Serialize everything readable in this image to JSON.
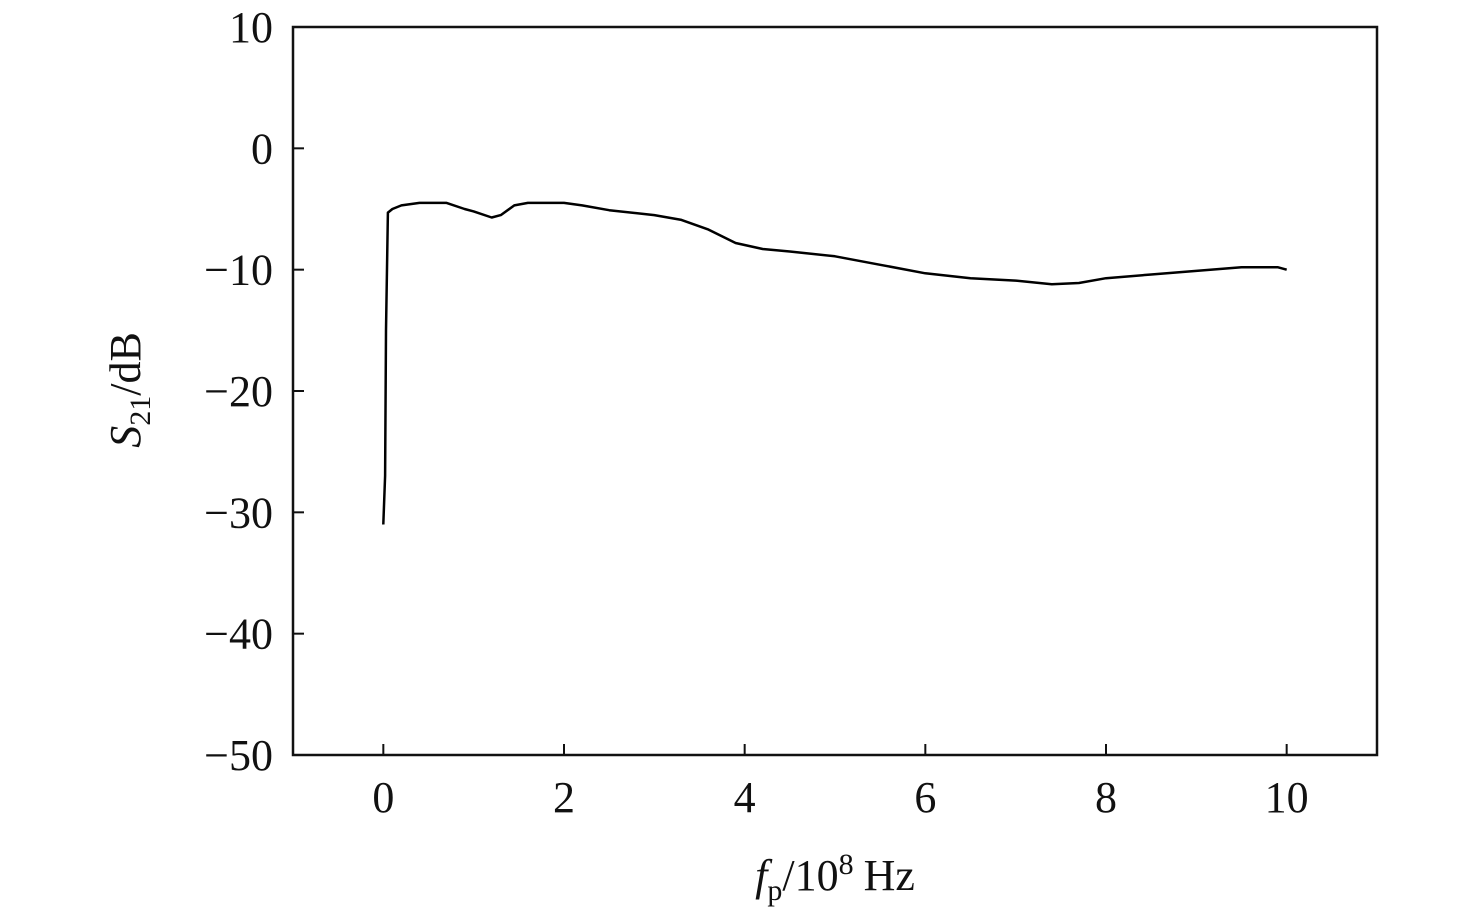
{
  "chart_data": {
    "type": "line",
    "ylabel": [
      "S",
      "21",
      "/dB"
    ],
    "xlabel": [
      "f",
      "p",
      "/10",
      "8",
      "Hz"
    ],
    "x": [
      0,
      0.02,
      0.03,
      0.05,
      0.1,
      0.2,
      0.4,
      0.7,
      0.9,
      1.0,
      1.2,
      1.3,
      1.45,
      1.6,
      2.0,
      2.2,
      2.5,
      3.0,
      3.3,
      3.6,
      3.9,
      4.2,
      4.5,
      5.0,
      5.5,
      6.0,
      6.5,
      7.0,
      7.4,
      7.7,
      8.0,
      8.5,
      9.0,
      9.5,
      9.9,
      10.0
    ],
    "values": [
      -31,
      -27,
      -15,
      -5.3,
      -5,
      -4.7,
      -4.5,
      -4.5,
      -5,
      -5.2,
      -5.7,
      -5.5,
      -4.7,
      -4.5,
      -4.5,
      -4.7,
      -5.1,
      -5.5,
      -5.9,
      -6.7,
      -7.8,
      -8.3,
      -8.5,
      -8.9,
      -9.6,
      -10.3,
      -10.7,
      -10.9,
      -11.2,
      -11.1,
      -10.7,
      -10.4,
      -10.1,
      -9.8,
      -9.8,
      -10.0
    ],
    "color": "#000000",
    "xlim": [
      -1,
      11
    ],
    "xticks": [
      0,
      2,
      4,
      6,
      8,
      10
    ],
    "ylim": [
      -50,
      10
    ],
    "yticks": [
      {
        "value": -50,
        "label": "−50"
      },
      {
        "value": -40,
        "label": "−40"
      },
      {
        "value": -30,
        "label": "−30"
      },
      {
        "value": -20,
        "label": "−20"
      },
      {
        "value": -10,
        "label": "−10"
      },
      0,
      10
    ],
    "grid": false
  }
}
